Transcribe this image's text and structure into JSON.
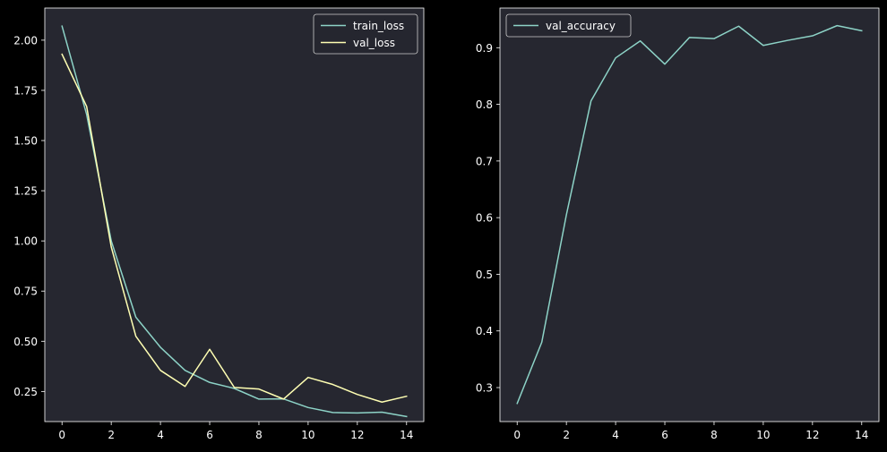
{
  "chart_data": [
    {
      "type": "line",
      "x": [
        0,
        1,
        2,
        3,
        4,
        5,
        6,
        7,
        8,
        9,
        10,
        11,
        12,
        13,
        14
      ],
      "xticks": [
        0,
        2,
        4,
        6,
        8,
        10,
        12,
        14
      ],
      "xlim": [
        -0.7,
        14.7
      ],
      "yticks": [
        0.25,
        0.5,
        0.75,
        1.0,
        1.25,
        1.5,
        1.75,
        2.0
      ],
      "ytick_labels": [
        "0.25",
        "0.50",
        "0.75",
        "1.00",
        "1.25",
        "1.50",
        "1.75",
        "2.00"
      ],
      "ylim": [
        0.1,
        2.16
      ],
      "grid": false,
      "legend": "top-right",
      "series": [
        {
          "name": "train_loss",
          "color": "#8dd3c7",
          "values": [
            2.07,
            1.63,
            1.0,
            0.62,
            0.47,
            0.355,
            0.295,
            0.265,
            0.212,
            0.213,
            0.17,
            0.145,
            0.143,
            0.147,
            0.125
          ]
        },
        {
          "name": "val_loss",
          "color": "#ffffb3",
          "values": [
            1.93,
            1.67,
            0.97,
            0.525,
            0.355,
            0.275,
            0.46,
            0.27,
            0.262,
            0.212,
            0.32,
            0.285,
            0.235,
            0.197,
            0.226
          ]
        }
      ]
    },
    {
      "type": "line",
      "x": [
        0,
        1,
        2,
        3,
        4,
        5,
        6,
        7,
        8,
        9,
        10,
        11,
        12,
        13,
        14
      ],
      "xticks": [
        0,
        2,
        4,
        6,
        8,
        10,
        12,
        14
      ],
      "xlim": [
        -0.7,
        14.7
      ],
      "yticks": [
        0.3,
        0.4,
        0.5,
        0.6,
        0.7,
        0.8,
        0.9
      ],
      "ytick_labels": [
        "0.3",
        "0.4",
        "0.5",
        "0.6",
        "0.7",
        "0.8",
        "0.9"
      ],
      "ylim": [
        0.24,
        0.97
      ],
      "grid": false,
      "legend": "top-left",
      "series": [
        {
          "name": "val_accuracy",
          "color": "#8dd3c7",
          "values": [
            0.272,
            0.38,
            0.605,
            0.806,
            0.882,
            0.912,
            0.871,
            0.918,
            0.916,
            0.938,
            0.904,
            0.913,
            0.921,
            0.939,
            0.93
          ]
        }
      ]
    }
  ]
}
